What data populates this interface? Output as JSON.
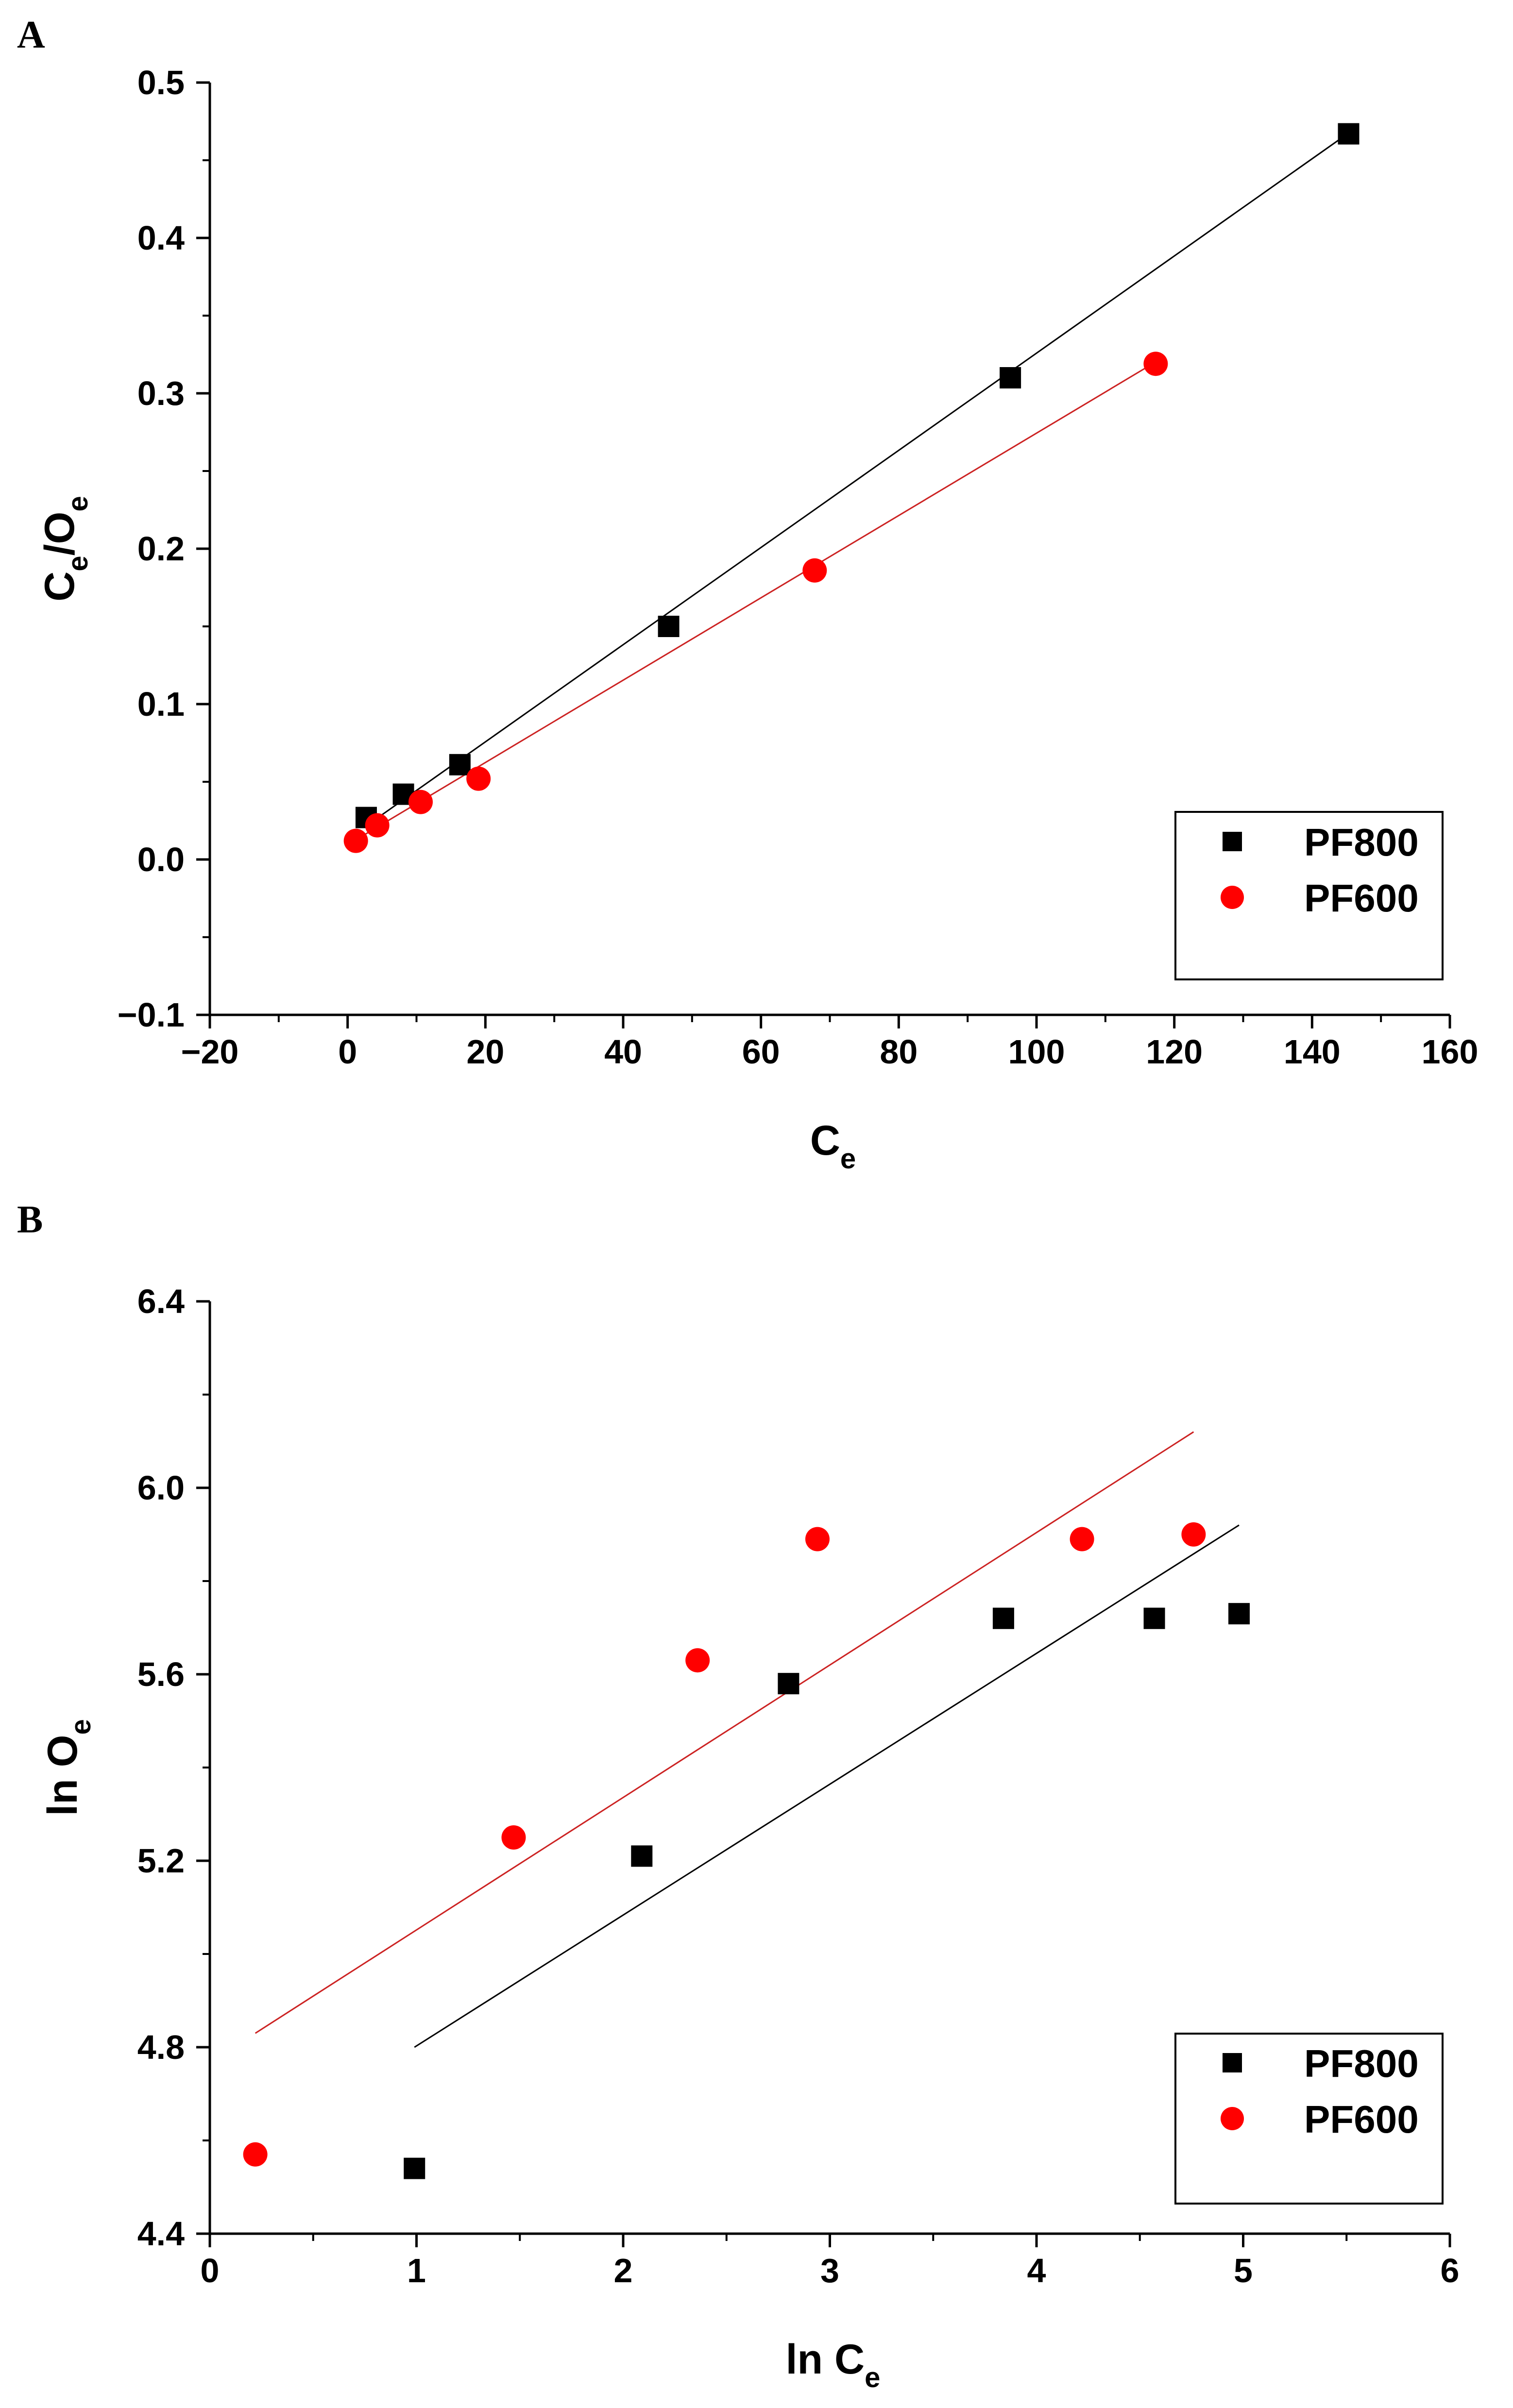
{
  "chart_data": [
    {
      "panel": "A",
      "type": "scatter",
      "xlabel": {
        "main": "C",
        "sub": "e"
      },
      "ylabel": {
        "p1": "C",
        "s1": "e",
        "p2": "/O",
        "s2": "e"
      },
      "xlim": [
        -20,
        160
      ],
      "ylim": [
        -0.1,
        0.5
      ],
      "xticks": [
        -20,
        0,
        20,
        40,
        60,
        80,
        100,
        120,
        140,
        160
      ],
      "xtick_labels": [
        "−20",
        "0",
        "20",
        "40",
        "60",
        "80",
        "100",
        "120",
        "140",
        "160"
      ],
      "yticks": [
        -0.1,
        0.0,
        0.1,
        0.2,
        0.3,
        0.4,
        0.5
      ],
      "ytick_labels": [
        "−0.1",
        "0.0",
        "0.1",
        "0.2",
        "0.3",
        "0.4",
        "0.5"
      ],
      "legend_position": "bottom-right",
      "series": [
        {
          "name": "PF800",
          "marker": "square",
          "color": "#000000",
          "x": [
            2.7,
            8.1,
            16.3,
            46.6,
            96.2,
            145.3
          ],
          "y": [
            0.027,
            0.042,
            0.061,
            0.15,
            0.31,
            0.467
          ],
          "fit": {
            "x": [
              2.7,
              145.3
            ],
            "y": [
              0.0216,
              0.4675
            ]
          }
        },
        {
          "name": "PF600",
          "marker": "circle",
          "color": "#ff0000",
          "x": [
            1.2,
            4.3,
            10.6,
            19.0,
            67.8,
            117.3
          ],
          "y": [
            0.012,
            0.022,
            0.037,
            0.052,
            0.186,
            0.319
          ],
          "fit": {
            "x": [
              1.2,
              117.3
            ],
            "y": [
              0.0126,
              0.3202
            ]
          }
        }
      ]
    },
    {
      "panel": "B",
      "type": "scatter",
      "xlabel": {
        "main": "ln C",
        "sub": "e"
      },
      "ylabel": {
        "p1": "ln O",
        "s1": "e",
        "p2": "",
        "s2": ""
      },
      "xlim": [
        0,
        6
      ],
      "ylim": [
        4.4,
        6.4
      ],
      "xticks": [
        0,
        1,
        2,
        3,
        4,
        5,
        6
      ],
      "xtick_labels": [
        "0",
        "1",
        "2",
        "3",
        "4",
        "5",
        "6"
      ],
      "yticks": [
        4.4,
        4.8,
        5.2,
        5.6,
        6.0,
        6.4
      ],
      "ytick_labels": [
        "4.4",
        "4.8",
        "5.2",
        "5.6",
        "6.0",
        "6.4"
      ],
      "legend_position": "bottom-right",
      "series": [
        {
          "name": "PF800",
          "marker": "square",
          "color": "#000000",
          "x": [
            0.99,
            2.09,
            2.8,
            3.84,
            4.57,
            4.98
          ],
          "y": [
            4.54,
            5.21,
            5.58,
            5.72,
            5.72,
            5.73
          ],
          "fit": {
            "x": [
              0.99,
              4.98
            ],
            "y": [
              4.8,
              5.92
            ]
          }
        },
        {
          "name": "PF600",
          "marker": "circle",
          "color": "#ff0000",
          "x": [
            0.22,
            1.47,
            2.36,
            2.94,
            4.22,
            4.76
          ],
          "y": [
            4.57,
            5.25,
            5.63,
            5.89,
            5.89,
            5.9
          ],
          "fit": {
            "x": [
              0.22,
              4.76
            ],
            "y": [
              4.83,
              6.12
            ]
          }
        }
      ]
    }
  ]
}
